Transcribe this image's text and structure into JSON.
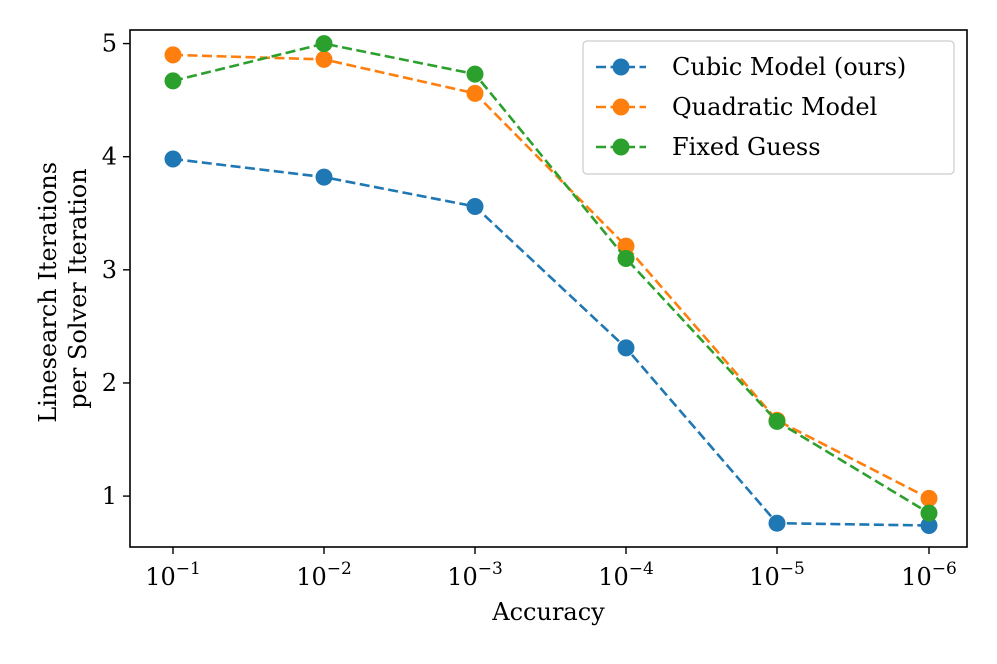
{
  "chart_data": {
    "type": "line",
    "title": "",
    "xlabel": "Accuracy",
    "ylabel_lines": [
      "Linesearch Iterations",
      "per Solver Iteration"
    ],
    "x_ticks": [
      {
        "base": "10",
        "exp": "−1"
      },
      {
        "base": "10",
        "exp": "−2"
      },
      {
        "base": "10",
        "exp": "−3"
      },
      {
        "base": "10",
        "exp": "−4"
      },
      {
        "base": "10",
        "exp": "−5"
      },
      {
        "base": "10",
        "exp": "−6"
      }
    ],
    "y_ticks": [
      1,
      2,
      3,
      4,
      5
    ],
    "ylim": [
      0.55,
      5.12
    ],
    "grid": false,
    "legend_position": "top-right",
    "series": [
      {
        "name": "Cubic Model (ours)",
        "color": "#1f77b4",
        "values": [
          3.98,
          3.82,
          3.56,
          2.31,
          0.76,
          0.74
        ]
      },
      {
        "name": "Quadratic Model",
        "color": "#ff7f0e",
        "values": [
          4.9,
          4.86,
          4.56,
          3.21,
          1.67,
          0.98
        ]
      },
      {
        "name": "Fixed Guess",
        "color": "#2ca02c",
        "values": [
          4.67,
          5.0,
          4.73,
          3.1,
          1.66,
          0.85
        ]
      }
    ]
  }
}
